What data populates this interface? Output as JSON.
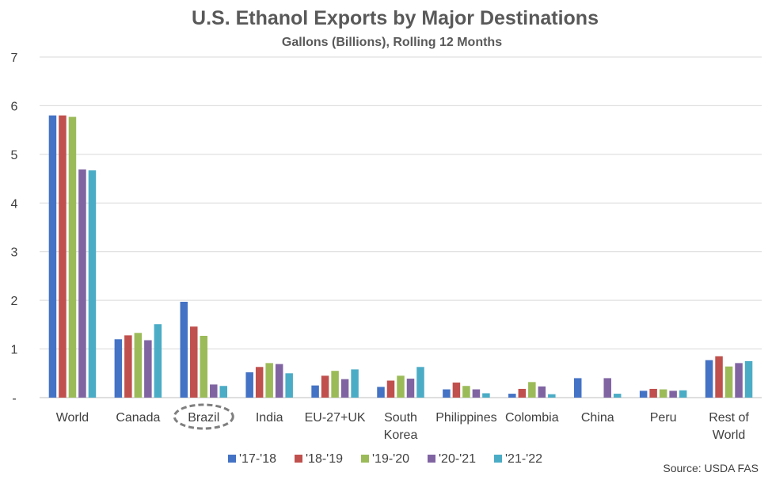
{
  "chart_data": {
    "type": "bar",
    "title": "U.S. Ethanol Exports by Major Destinations",
    "subtitle": "Gallons (Billions), Rolling 12 Months",
    "source": "Source: USDA FAS",
    "categories": [
      [
        "World"
      ],
      [
        "Canada"
      ],
      [
        "Brazil"
      ],
      [
        "India"
      ],
      [
        "EU-27+UK"
      ],
      [
        "South",
        "Korea"
      ],
      [
        "Philippines"
      ],
      [
        "Colombia"
      ],
      [
        "China"
      ],
      [
        "Peru"
      ],
      [
        "Rest of",
        "World"
      ]
    ],
    "highlighted_category": "Brazil",
    "ylim": [
      0,
      7
    ],
    "yticks": [
      "-",
      "1",
      "2",
      "3",
      "4",
      "5",
      "6",
      "7"
    ],
    "grid": true,
    "legend_position": "bottom",
    "series": [
      {
        "name": "'17-'18",
        "color": "#4472C4",
        "values": [
          5.8,
          1.2,
          1.97,
          0.52,
          0.25,
          0.22,
          0.17,
          0.08,
          0.4,
          0.14,
          0.77
        ]
      },
      {
        "name": "'18-'19",
        "color": "#C0504D",
        "values": [
          5.8,
          1.28,
          1.46,
          0.63,
          0.45,
          0.35,
          0.31,
          0.18,
          0.0,
          0.18,
          0.85
        ]
      },
      {
        "name": "'19-'20",
        "color": "#9BBB59",
        "values": [
          5.77,
          1.33,
          1.27,
          0.71,
          0.55,
          0.45,
          0.24,
          0.32,
          0.0,
          0.17,
          0.64
        ]
      },
      {
        "name": "'20-'21",
        "color": "#8064A2",
        "values": [
          4.69,
          1.18,
          0.27,
          0.69,
          0.38,
          0.39,
          0.17,
          0.23,
          0.4,
          0.14,
          0.71
        ]
      },
      {
        "name": "'21-'22",
        "color": "#4BACC6",
        "values": [
          4.67,
          1.51,
          0.24,
          0.5,
          0.58,
          0.63,
          0.09,
          0.07,
          0.08,
          0.15,
          0.75
        ]
      }
    ]
  }
}
